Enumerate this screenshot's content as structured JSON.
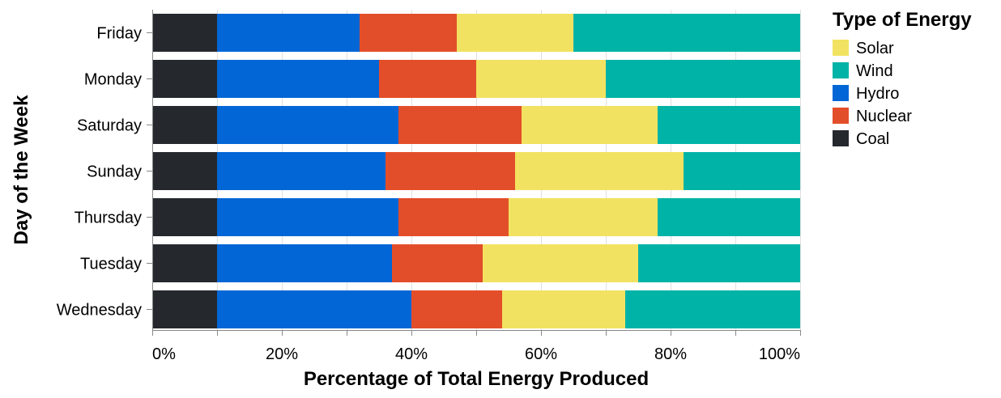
{
  "chart_data": {
    "type": "bar",
    "orientation": "horizontal",
    "stacked": "normalized",
    "categories": [
      "Friday",
      "Monday",
      "Saturday",
      "Sunday",
      "Thursday",
      "Tuesday",
      "Wednesday"
    ],
    "series": [
      {
        "name": "Coal",
        "color": "#25292e",
        "values": [
          10,
          10,
          10,
          10,
          10,
          10,
          10
        ]
      },
      {
        "name": "Hydro",
        "color": "#0366d6",
        "values": [
          22,
          25,
          28,
          26,
          28,
          27,
          30
        ]
      },
      {
        "name": "Nuclear",
        "color": "#e34e2a",
        "values": [
          15,
          15,
          19,
          20,
          17,
          14,
          14
        ]
      },
      {
        "name": "Solar",
        "color": "#f2e261",
        "values": [
          18,
          20,
          21,
          26,
          23,
          24,
          19
        ]
      },
      {
        "name": "Wind",
        "color": "#00b3a7",
        "values": [
          35,
          30,
          22,
          18,
          22,
          25,
          27
        ]
      }
    ],
    "legend_order": [
      "Solar",
      "Wind",
      "Hydro",
      "Nuclear",
      "Coal"
    ],
    "legend_title": "Type of Energy",
    "legend_position": "right",
    "xlabel": "Percentage of Total Energy Produced",
    "ylabel": "Day of the Week",
    "xlim": [
      0,
      100
    ],
    "x_ticks": [
      "0%",
      "20%",
      "40%",
      "60%",
      "80%",
      "100%"
    ],
    "grid": true
  }
}
